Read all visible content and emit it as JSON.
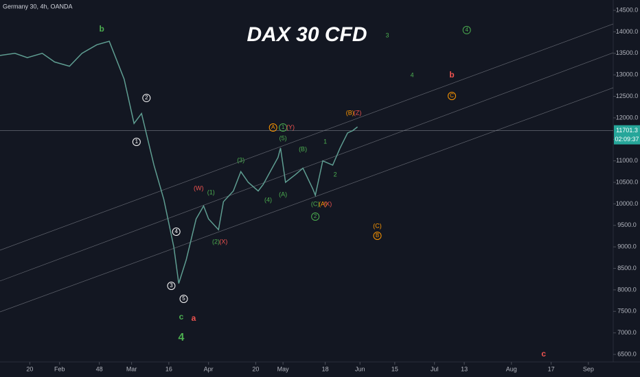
{
  "chart_data": {
    "type": "line",
    "title": "DAX 30 CFD",
    "series": [
      {
        "name": "Germany 30, 4h, OANDA",
        "color": "#5f9e92",
        "x": [
          8,
          14,
          19,
          25,
          30,
          36,
          41,
          47,
          52,
          58,
          62,
          65,
          70,
          74,
          78,
          80,
          83,
          87,
          90,
          92,
          96,
          98,
          102,
          105,
          108,
          112,
          114,
          120,
          121,
          123,
          127,
          130,
          134,
          135,
          138,
          142,
          145,
          148,
          150,
          152
        ],
        "values": [
          13450,
          13500,
          13400,
          13500,
          13300,
          13200,
          13500,
          13700,
          13780,
          12900,
          11870,
          12100,
          10900,
          10100,
          9000,
          8150,
          8700,
          9650,
          9950,
          9650,
          9400,
          10050,
          10300,
          10750,
          10500,
          10300,
          10450,
          11080,
          11300,
          10500,
          10680,
          10830,
          10350,
          10200,
          11000,
          10900,
          11300,
          11650,
          11700,
          11790
        ]
      }
    ],
    "xlim": [
      8,
      255
    ],
    "ylim": [
      6325,
      14740
    ],
    "xticks": [
      20,
      {
        "value": 32,
        "label": "Feb"
      },
      48,
      {
        "value": 61,
        "label": "Mar"
      },
      {
        "value": 76,
        "label": "16"
      },
      {
        "value": 92,
        "label": "Apr"
      },
      {
        "value": 111,
        "label": "20"
      },
      {
        "value": 122,
        "label": "May"
      },
      {
        "value": 139,
        "label": "18"
      },
      {
        "value": 153,
        "label": "Jun"
      },
      {
        "value": 167,
        "label": "15"
      },
      {
        "value": 183,
        "label": "Jul"
      },
      {
        "value": 195,
        "label": "13"
      },
      {
        "value": 214,
        "label": "Aug"
      },
      {
        "value": 230,
        "label": "17"
      },
      {
        "value": 245,
        "label": "Sep"
      }
    ],
    "yticks": [
      {
        "value": 6500,
        "label": "6500.0"
      },
      {
        "value": 7000,
        "label": "7000.0"
      },
      {
        "value": 7500,
        "label": "7500.0"
      },
      {
        "value": 8000,
        "label": "8000.0"
      },
      {
        "value": 8500,
        "label": "8500.0"
      },
      {
        "value": 9000,
        "label": "9000.0"
      },
      {
        "value": 9500,
        "label": "9500.0"
      },
      {
        "value": 10000,
        "label": "10000.0"
      },
      {
        "value": 10500,
        "label": "10500.0"
      },
      {
        "value": 11000,
        "label": "11000.0"
      },
      {
        "value": 11500,
        "label": "11500.0"
      },
      {
        "value": 12000,
        "label": "12000.0"
      },
      {
        "value": 12500,
        "label": "12500.0"
      },
      {
        "value": 13000,
        "label": "13000.0"
      },
      {
        "value": 13500,
        "label": "13500.0"
      },
      {
        "value": 14000,
        "label": "14000.0"
      },
      {
        "value": 14500,
        "label": "14500.0"
      }
    ],
    "last_price": 11701.3,
    "countdown": "02:09:37",
    "trendlines": [
      {
        "x": [
          8,
          255
        ],
        "y": [
          8923,
          14183
        ]
      },
      {
        "x": [
          8,
          255
        ],
        "y": [
          8206,
          13514
        ]
      },
      {
        "x": [
          8,
          255
        ],
        "y": [
          7488,
          12700
        ]
      }
    ],
    "annotations": [
      {
        "text": "b",
        "x": 49,
        "y": 14055,
        "color": "#4caf50",
        "style": "big"
      },
      {
        "text": "3",
        "x": 164,
        "y": 13912,
        "color": "#4caf50",
        "style": "plain"
      },
      {
        "text": "4",
        "x": 196,
        "y": 14040,
        "color": "#4caf50",
        "style": "circle"
      },
      {
        "text": "4",
        "x": 174,
        "y": 12988,
        "color": "#4caf50",
        "style": "plain"
      },
      {
        "text": "b",
        "x": 190,
        "y": 12988,
        "color": "#ef5350",
        "style": "big"
      },
      {
        "text": "C",
        "x": 190,
        "y": 12509,
        "color": "#ff9800",
        "style": "circle"
      },
      {
        "text": "(B)",
        "x": 149,
        "y": 12111,
        "color": "#ff9800",
        "style": "plain"
      },
      {
        "text": "(Z)",
        "x": 152,
        "y": 12111,
        "color": "#ef5350",
        "style": "plain"
      },
      {
        "text": "2",
        "x": 67,
        "y": 12462,
        "color": "#ffffff",
        "style": "circle"
      },
      {
        "text": "1",
        "x": 63,
        "y": 11441,
        "color": "#ffffff",
        "style": "circle"
      },
      {
        "text": "A",
        "x": 118,
        "y": 11776,
        "color": "#ff9800",
        "style": "circle"
      },
      {
        "text": "1",
        "x": 122,
        "y": 11776,
        "color": "#4caf50",
        "style": "circle"
      },
      {
        "text": "(Y)",
        "x": 125,
        "y": 11776,
        "color": "#ef5350",
        "style": "plain"
      },
      {
        "text": "(5)",
        "x": 122,
        "y": 11521,
        "color": "#4caf50",
        "style": "plain"
      },
      {
        "text": "(3)",
        "x": 105,
        "y": 11011,
        "color": "#4caf50",
        "style": "plain"
      },
      {
        "text": "(B)",
        "x": 130,
        "y": 11266,
        "color": "#4caf50",
        "style": "plain"
      },
      {
        "text": "1",
        "x": 139,
        "y": 11441,
        "color": "#4caf50",
        "style": "plain"
      },
      {
        "text": "2",
        "x": 143,
        "y": 10676,
        "color": "#4caf50",
        "style": "plain"
      },
      {
        "text": "(W)",
        "x": 88,
        "y": 10357,
        "color": "#ef5350",
        "style": "plain"
      },
      {
        "text": "(1)",
        "x": 93,
        "y": 10262,
        "color": "#4caf50",
        "style": "plain"
      },
      {
        "text": "(4)",
        "x": 116,
        "y": 10087,
        "color": "#4caf50",
        "style": "plain"
      },
      {
        "text": "(A)",
        "x": 122,
        "y": 10214,
        "color": "#4caf50",
        "style": "plain"
      },
      {
        "text": "(C)",
        "x": 135,
        "y": 9991,
        "color": "#4caf50",
        "style": "plain"
      },
      {
        "text": "(A)",
        "x": 138,
        "y": 9991,
        "color": "#ff9800",
        "style": "plain"
      },
      {
        "text": "(X)",
        "x": 140,
        "y": 9991,
        "color": "#ef5350",
        "style": "plain"
      },
      {
        "text": "2",
        "x": 135,
        "y": 9704,
        "color": "#4caf50",
        "style": "circle"
      },
      {
        "text": "(2)",
        "x": 95,
        "y": 9114,
        "color": "#4caf50",
        "style": "plain"
      },
      {
        "text": "(X)",
        "x": 98,
        "y": 9114,
        "color": "#ef5350",
        "style": "plain"
      },
      {
        "text": "(C)",
        "x": 160,
        "y": 9481,
        "color": "#ff9800",
        "style": "plain"
      },
      {
        "text": "B",
        "x": 160,
        "y": 9258,
        "color": "#ff9800",
        "style": "circle"
      },
      {
        "text": "4",
        "x": 79,
        "y": 9353,
        "color": "#ffffff",
        "style": "circle"
      },
      {
        "text": "3",
        "x": 77,
        "y": 8094,
        "color": "#ffffff",
        "style": "circle"
      },
      {
        "text": "5",
        "x": 82,
        "y": 7791,
        "color": "#ffffff",
        "style": "circle"
      },
      {
        "text": "c",
        "x": 81,
        "y": 7361,
        "color": "#4caf50",
        "style": "big"
      },
      {
        "text": "a",
        "x": 86,
        "y": 7329,
        "color": "#ef5350",
        "style": "big"
      },
      {
        "text": "4",
        "x": 81,
        "y": 6883,
        "color": "#4caf50",
        "style": "huge"
      },
      {
        "text": "c",
        "x": 227,
        "y": 6500,
        "color": "#ef5350",
        "style": "big"
      }
    ]
  }
}
